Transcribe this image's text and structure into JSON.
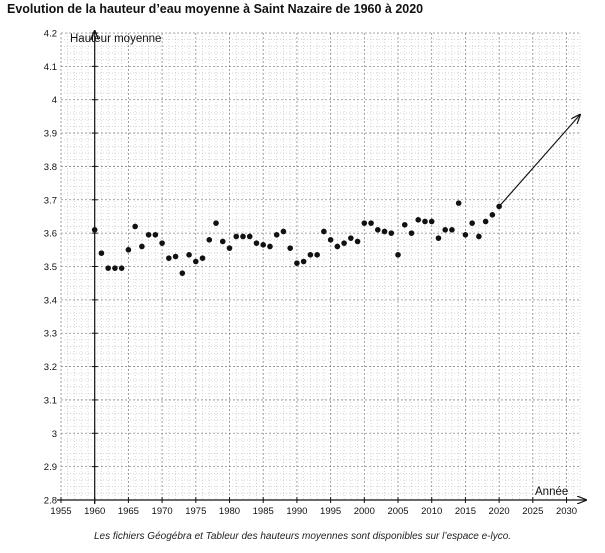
{
  "title": "Evolution de la hauteur d’eau moyenne à Saint Nazaire de 1960 à 2020",
  "caption": "Les fichiers Géogébra et Tableur des hauteurs moyennes sont disponibles sur l’espace e-lyco.",
  "chart_data": {
    "type": "scatter",
    "title": "Evolution de la hauteur d’eau moyenne à Saint Nazaire de 1960 à 2020",
    "xlabel": "Année",
    "ylabel": "Hauteur moyenne",
    "xlim": [
      1955,
      2032
    ],
    "ylim": [
      2.8,
      4.2
    ],
    "x_ticks": [
      1955,
      1960,
      1965,
      1970,
      1975,
      1980,
      1985,
      1990,
      1995,
      2000,
      2005,
      2010,
      2015,
      2020,
      2025,
      2030
    ],
    "y_ticks": [
      2.8,
      2.9,
      3,
      3.1,
      3.2,
      3.3,
      3.4,
      3.5,
      3.6,
      3.7,
      3.8,
      3.9,
      4,
      4.1,
      4.2
    ],
    "grid": true,
    "points": [
      [
        1960,
        3.61
      ],
      [
        1961,
        3.54
      ],
      [
        1962,
        3.495
      ],
      [
        1963,
        3.495
      ],
      [
        1964,
        3.495
      ],
      [
        1965,
        3.55
      ],
      [
        1966,
        3.62
      ],
      [
        1967,
        3.56
      ],
      [
        1968,
        3.595
      ],
      [
        1969,
        3.595
      ],
      [
        1970,
        3.57
      ],
      [
        1971,
        3.525
      ],
      [
        1972,
        3.53
      ],
      [
        1973,
        3.48
      ],
      [
        1974,
        3.535
      ],
      [
        1975,
        3.515
      ],
      [
        1976,
        3.525
      ],
      [
        1977,
        3.58
      ],
      [
        1978,
        3.63
      ],
      [
        1979,
        3.575
      ],
      [
        1980,
        3.555
      ],
      [
        1981,
        3.59
      ],
      [
        1982,
        3.59
      ],
      [
        1983,
        3.59
      ],
      [
        1984,
        3.57
      ],
      [
        1985,
        3.565
      ],
      [
        1986,
        3.56
      ],
      [
        1987,
        3.595
      ],
      [
        1988,
        3.605
      ],
      [
        1989,
        3.555
      ],
      [
        1990,
        3.51
      ],
      [
        1991,
        3.515
      ],
      [
        1992,
        3.535
      ],
      [
        1993,
        3.535
      ],
      [
        1994,
        3.605
      ],
      [
        1995,
        3.58
      ],
      [
        1996,
        3.56
      ],
      [
        1997,
        3.57
      ],
      [
        1998,
        3.585
      ],
      [
        1999,
        3.575
      ],
      [
        2000,
        3.63
      ],
      [
        2001,
        3.63
      ],
      [
        2002,
        3.61
      ],
      [
        2003,
        3.605
      ],
      [
        2004,
        3.6
      ],
      [
        2005,
        3.535
      ],
      [
        2006,
        3.625
      ],
      [
        2007,
        3.6
      ],
      [
        2008,
        3.64
      ],
      [
        2009,
        3.635
      ],
      [
        2010,
        3.635
      ],
      [
        2011,
        3.585
      ],
      [
        2012,
        3.61
      ],
      [
        2013,
        3.61
      ],
      [
        2014,
        3.69
      ],
      [
        2015,
        3.595
      ],
      [
        2016,
        3.63
      ],
      [
        2017,
        3.59
      ],
      [
        2018,
        3.635
      ],
      [
        2019,
        3.655
      ],
      [
        2020,
        3.68
      ]
    ],
    "trend_arrow": {
      "from": [
        2020,
        3.68
      ],
      "to": [
        2032,
        3.955
      ]
    }
  }
}
